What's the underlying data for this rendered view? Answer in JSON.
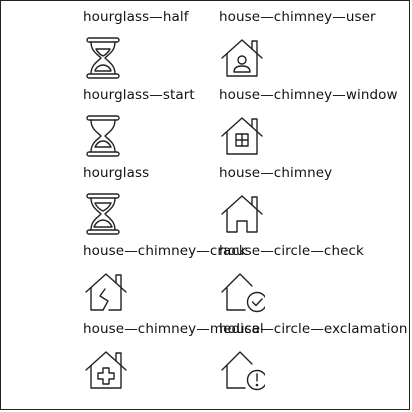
{
  "icons": [
    {
      "label": "hourglass—half",
      "icon": "hourglass-half-icon"
    },
    {
      "label": "house—chimney—user",
      "icon": "house-chimney-user-icon"
    },
    {
      "label": "hourglass—start",
      "icon": "hourglass-start-icon"
    },
    {
      "label": "house—chimney—window",
      "icon": "house-chimney-window-icon"
    },
    {
      "label": "hourglass",
      "icon": "hourglass-icon"
    },
    {
      "label": "house—chimney",
      "icon": "house-chimney-icon"
    },
    {
      "label": "house—chimney—crack",
      "icon": "house-chimney-crack-icon"
    },
    {
      "label": "house—circle—check",
      "icon": "house-circle-check-icon"
    },
    {
      "label": "house—chimney—medical",
      "icon": "house-chimney-medical-icon"
    },
    {
      "label": "house—circle—exclamation",
      "icon": "house-circle-exclamation-icon"
    }
  ]
}
